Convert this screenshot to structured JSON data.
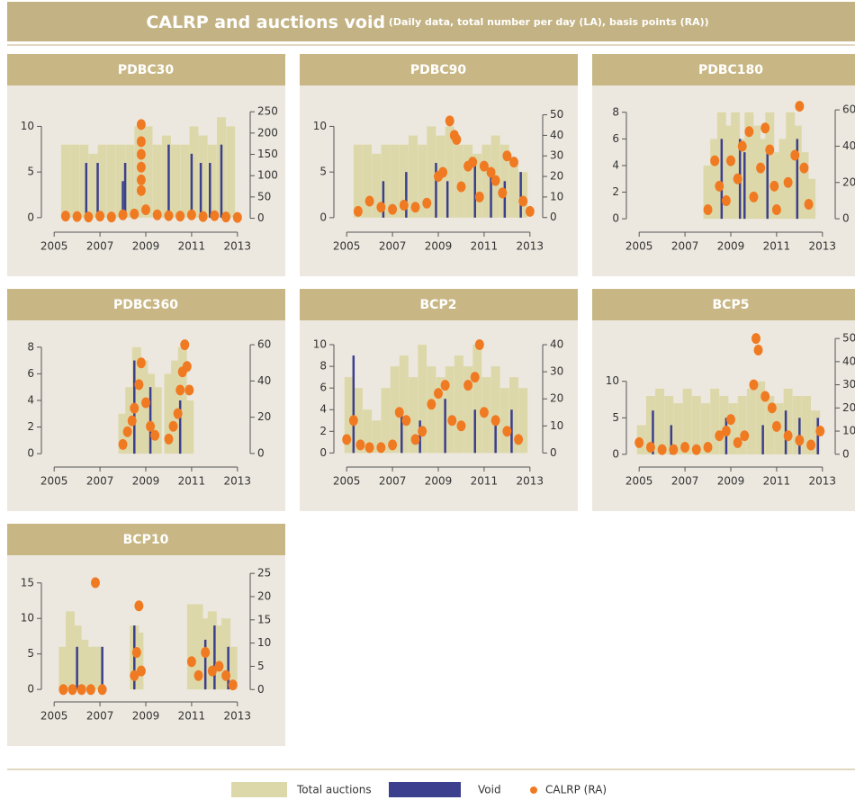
{
  "title": "CALRP and auctions void",
  "subtitle": "(Daily data, total number per day (LA), basis points (RA))",
  "legend": [
    {
      "name": "Total auctions",
      "color": "#ddd8aa"
    },
    {
      "name": "Void",
      "color": "#3b3f8e"
    },
    {
      "name": "CALRP (RA)",
      "color": "#f07a22"
    }
  ],
  "chart_data": [
    {
      "type": "combo",
      "title": "PDBC30",
      "xlim": [
        2004.6,
        2013.4
      ],
      "xticks": [
        2005,
        2007,
        2009,
        2011,
        2013
      ],
      "ylim": [
        -1,
        13
      ],
      "yticks": [
        0,
        5,
        10
      ],
      "y2lim": [
        -20,
        280
      ],
      "y2ticks": [
        0,
        50,
        100,
        150,
        200,
        250
      ],
      "series": [
        {
          "color": "#ddd8aa",
          "x": [
            2005.5,
            2005.9,
            2006.3,
            2006.7,
            2007.1,
            2007.5,
            2007.9,
            2008.3,
            2008.7,
            2009.1,
            2009.5,
            2009.9,
            2010.3,
            2010.7,
            2011.1,
            2011.5,
            2011.9,
            2012.3,
            2012.7
          ],
          "values": [
            8,
            8,
            8,
            7,
            8,
            8,
            8,
            8,
            10,
            10,
            8,
            9,
            8,
            8,
            10,
            9,
            8,
            11,
            10
          ]
        },
        {
          "color": "#3b3f8e",
          "x": [
            2006.4,
            2006.9,
            2008.0,
            2008.1,
            2010.0,
            2011.0,
            2011.4,
            2011.8,
            2012.3
          ],
          "values": [
            6,
            6,
            4,
            6,
            8,
            7,
            6,
            6,
            8
          ]
        },
        {
          "color": "#f07a22",
          "axis": "y2",
          "x": [
            2005.5,
            2006,
            2006.5,
            2007,
            2007.5,
            2008,
            2008.5,
            2008.8,
            2008.8,
            2008.8,
            2008.8,
            2008.8,
            2008.8,
            2009,
            2009.5,
            2010,
            2010.5,
            2011,
            2011.5,
            2012,
            2012.5,
            2013
          ],
          "values": [
            5,
            4,
            3,
            5,
            3,
            8,
            10,
            220,
            180,
            150,
            120,
            90,
            65,
            20,
            8,
            6,
            5,
            8,
            4,
            6,
            3,
            2
          ]
        }
      ]
    },
    {
      "type": "combo",
      "title": "PDBC90",
      "xlim": [
        2004.6,
        2013.4
      ],
      "xticks": [
        2005,
        2007,
        2009,
        2011,
        2013
      ],
      "ylim": [
        -1,
        13
      ],
      "yticks": [
        0,
        5,
        10
      ],
      "y2lim": [
        -4.5,
        57.7
      ],
      "y2ticks": [
        0,
        10,
        20,
        30,
        40,
        50
      ],
      "series": [
        {
          "color": "#ddd8aa",
          "x": [
            2005.5,
            2005.9,
            2006.3,
            2006.7,
            2007.1,
            2007.5,
            2007.9,
            2008.3,
            2008.7,
            2009.1,
            2009.5,
            2009.9,
            2010.3,
            2010.7,
            2011.1,
            2011.5,
            2011.9,
            2012.3,
            2012.7
          ],
          "values": [
            8,
            8,
            7,
            8,
            8,
            8,
            9,
            8,
            10,
            9,
            10,
            8,
            8,
            7,
            8,
            9,
            8,
            6,
            5
          ]
        },
        {
          "color": "#3b3f8e",
          "x": [
            2006.6,
            2007.6,
            2008.9,
            2009.4,
            2010.6,
            2011.3,
            2011.9,
            2012.6
          ],
          "values": [
            4,
            5,
            6,
            4,
            6,
            5,
            4,
            5
          ]
        },
        {
          "color": "#f07a22",
          "axis": "y2",
          "x": [
            2005.5,
            2006,
            2006.5,
            2007,
            2007.5,
            2008,
            2008.5,
            2009,
            2009.2,
            2009.5,
            2009.7,
            2009.8,
            2010,
            2010.3,
            2010.5,
            2010.8,
            2011,
            2011.3,
            2011.5,
            2011.8,
            2012,
            2012.3,
            2012.7,
            2013
          ],
          "values": [
            3,
            8,
            5,
            4,
            6,
            5,
            7,
            20,
            22,
            47,
            40,
            38,
            15,
            25,
            27,
            10,
            25,
            22,
            18,
            12,
            30,
            27,
            8,
            3
          ]
        }
      ]
    },
    {
      "type": "combo",
      "title": "PDBC180",
      "xlim": [
        2004.6,
        2013.4
      ],
      "xticks": [
        2005,
        2007,
        2009,
        2011,
        2013
      ],
      "ylim": [
        -0.6,
        9
      ],
      "yticks": [
        0,
        2,
        4,
        6,
        8
      ],
      "y2lim": [
        -4.4,
        66
      ],
      "y2ticks": [
        0,
        20,
        40,
        60
      ],
      "series": [
        {
          "color": "#ddd8aa",
          "x": [
            2008,
            2008.3,
            2008.6,
            2008.9,
            2009.2,
            2009.5,
            2009.8,
            2010.1,
            2010.4,
            2010.7,
            2011,
            2011.3,
            2011.6,
            2011.9,
            2012.2,
            2012.5
          ],
          "values": [
            4,
            6,
            8,
            7,
            8,
            6,
            8,
            7,
            6,
            8,
            5,
            6,
            8,
            7,
            5,
            3
          ]
        },
        {
          "color": "#3b3f8e",
          "x": [
            2008.6,
            2009.4,
            2009.6,
            2010.6,
            2011.9
          ],
          "values": [
            6,
            6,
            5,
            5,
            6
          ]
        },
        {
          "color": "#f07a22",
          "axis": "y2",
          "x": [
            2008,
            2008.3,
            2008.5,
            2008.8,
            2009,
            2009.3,
            2009.5,
            2009.8,
            2010,
            2010.3,
            2010.5,
            2010.7,
            2010.9,
            2011,
            2011.5,
            2011.8,
            2012,
            2012.2,
            2012.4
          ],
          "values": [
            5,
            32,
            18,
            10,
            32,
            22,
            40,
            48,
            12,
            28,
            50,
            38,
            18,
            5,
            20,
            35,
            62,
            28,
            8
          ]
        }
      ]
    },
    {
      "type": "combo",
      "title": "PDBC360",
      "xlim": [
        2004.6,
        2013.4
      ],
      "xticks": [
        2005,
        2007,
        2009,
        2011,
        2013
      ],
      "ylim": [
        -0.6,
        9
      ],
      "yticks": [
        0,
        2,
        4,
        6,
        8
      ],
      "y2lim": [
        -4.5,
        66
      ],
      "y2ticks": [
        0,
        20,
        40,
        60
      ],
      "series": [
        {
          "color": "#ddd8aa",
          "x": [
            2008,
            2008.3,
            2008.6,
            2008.9,
            2009.2,
            2009.5,
            2010,
            2010.3,
            2010.6,
            2010.9
          ],
          "values": [
            3,
            5,
            8,
            7,
            6,
            5,
            6,
            7,
            8,
            4
          ]
        },
        {
          "color": "#3b3f8e",
          "x": [
            2008.5,
            2009.2,
            2010.5
          ],
          "values": [
            7,
            5,
            4
          ]
        },
        {
          "color": "#f07a22",
          "axis": "y2",
          "x": [
            2008,
            2008.2,
            2008.4,
            2008.5,
            2008.7,
            2008.8,
            2009,
            2009.2,
            2009.4,
            2010,
            2010.2,
            2010.4,
            2010.5,
            2010.6,
            2010.7,
            2010.8,
            2010.9
          ],
          "values": [
            5,
            12,
            18,
            25,
            38,
            50,
            28,
            15,
            10,
            8,
            15,
            22,
            35,
            45,
            60,
            48,
            35
          ]
        }
      ]
    },
    {
      "type": "combo",
      "title": "BCP2",
      "xlim": [
        2004.6,
        2013.4
      ],
      "xticks": [
        2005,
        2007,
        2009,
        2011,
        2013
      ],
      "ylim": [
        -0.8,
        11
      ],
      "yticks": [
        0,
        2,
        4,
        6,
        8,
        10
      ],
      "y2lim": [
        -3.2,
        44
      ],
      "y2ticks": [
        0,
        10,
        20,
        30,
        40
      ],
      "series": [
        {
          "color": "#ddd8aa",
          "x": [
            2005.1,
            2005.5,
            2005.9,
            2006.3,
            2006.7,
            2007.1,
            2007.5,
            2007.9,
            2008.3,
            2008.7,
            2009.1,
            2009.5,
            2009.9,
            2010.3,
            2010.7,
            2011.1,
            2011.5,
            2011.9,
            2012.3,
            2012.7
          ],
          "values": [
            7,
            6,
            4,
            3,
            6,
            8,
            9,
            7,
            10,
            8,
            7,
            8,
            9,
            8,
            10,
            7,
            8,
            6,
            7,
            6
          ]
        },
        {
          "color": "#3b3f8e",
          "x": [
            2005.3,
            2007.4,
            2008.2,
            2009.3,
            2010.6,
            2011.5,
            2012.2
          ],
          "values": [
            9,
            4,
            3,
            5,
            4,
            3,
            4
          ]
        },
        {
          "color": "#f07a22",
          "axis": "y2",
          "x": [
            2005,
            2005.3,
            2005.6,
            2006,
            2006.5,
            2007,
            2007.3,
            2007.6,
            2008,
            2008.3,
            2008.7,
            2009,
            2009.3,
            2009.6,
            2010,
            2010.3,
            2010.6,
            2010.8,
            2011,
            2011.5,
            2012,
            2012.5
          ],
          "values": [
            5,
            12,
            3,
            2,
            2,
            3,
            15,
            12,
            5,
            8,
            18,
            22,
            25,
            12,
            10,
            25,
            28,
            40,
            15,
            12,
            8,
            5
          ]
        }
      ]
    },
    {
      "type": "combo",
      "title": "BCP5",
      "xlim": [
        2004.6,
        2013.4
      ],
      "xticks": [
        2005,
        2007,
        2009,
        2011,
        2013
      ],
      "ylim": [
        -1,
        16.5
      ],
      "yticks": [
        0,
        5,
        10
      ],
      "y2lim": [
        -3.2,
        52
      ],
      "y2ticks": [
        0,
        10,
        20,
        30,
        40,
        50
      ],
      "series": [
        {
          "color": "#ddd8aa",
          "x": [
            2005.1,
            2005.5,
            2005.9,
            2006.3,
            2006.7,
            2007.1,
            2007.5,
            2007.9,
            2008.3,
            2008.7,
            2009.1,
            2009.5,
            2009.9,
            2010.3,
            2010.7,
            2011.1,
            2011.5,
            2011.9,
            2012.3,
            2012.7
          ],
          "values": [
            4,
            8,
            9,
            8,
            7,
            9,
            8,
            7,
            9,
            8,
            7,
            8,
            9,
            10,
            8,
            7,
            9,
            8,
            8,
            6
          ]
        },
        {
          "color": "#3b3f8e",
          "x": [
            2005.6,
            2006.4,
            2008.8,
            2010.4,
            2011.4,
            2012.0,
            2012.8
          ],
          "values": [
            6,
            4,
            5,
            4,
            6,
            5,
            5
          ]
        },
        {
          "color": "#f07a22",
          "axis": "y2",
          "x": [
            2005,
            2005.5,
            2006,
            2006.5,
            2007,
            2007.5,
            2008,
            2008.5,
            2008.8,
            2009,
            2009.3,
            2009.6,
            2010,
            2010.1,
            2010.2,
            2010.5,
            2010.8,
            2011,
            2011.5,
            2012,
            2012.5,
            2012.9
          ],
          "values": [
            5,
            3,
            2,
            2,
            3,
            2,
            3,
            8,
            10,
            15,
            5,
            8,
            30,
            50,
            45,
            25,
            20,
            12,
            8,
            6,
            4,
            10
          ]
        }
      ]
    },
    {
      "type": "combo",
      "title": "BCP10",
      "xlim": [
        2004.6,
        2013.4
      ],
      "xticks": [
        2005,
        2007,
        2009,
        2011,
        2013
      ],
      "ylim": [
        -1,
        17
      ],
      "yticks": [
        0,
        5,
        10,
        15
      ],
      "y2lim": [
        -1.5,
        26
      ],
      "y2ticks": [
        0,
        5,
        10,
        15,
        20,
        25
      ],
      "series": [
        {
          "color": "#ddd8aa",
          "x": [
            2005.4,
            2005.7,
            2006,
            2006.3,
            2006.6,
            2006.9,
            2008.5,
            2008.7,
            2011,
            2011.3,
            2011.6,
            2011.9,
            2012.2,
            2012.5,
            2012.8
          ],
          "values": [
            6,
            11,
            9,
            7,
            6,
            6,
            9,
            8,
            12,
            12,
            10,
            11,
            9,
            10,
            6
          ]
        },
        {
          "color": "#3b3f8e",
          "x": [
            2006.0,
            2007.1,
            2008.5,
            2011.6,
            2012.0,
            2012.6
          ],
          "values": [
            6,
            6,
            9,
            7,
            9,
            6
          ]
        },
        {
          "color": "#f07a22",
          "axis": "y2",
          "x": [
            2005.4,
            2005.8,
            2006.2,
            2006.6,
            2006.8,
            2007.1,
            2008.5,
            2008.6,
            2008.7,
            2008.8,
            2011,
            2011.3,
            2011.6,
            2011.9,
            2012.2,
            2012.5,
            2012.8
          ],
          "values": [
            0,
            0,
            0,
            0,
            23,
            0,
            3,
            8,
            18,
            4,
            6,
            3,
            8,
            4,
            5,
            3,
            1
          ]
        }
      ]
    }
  ]
}
